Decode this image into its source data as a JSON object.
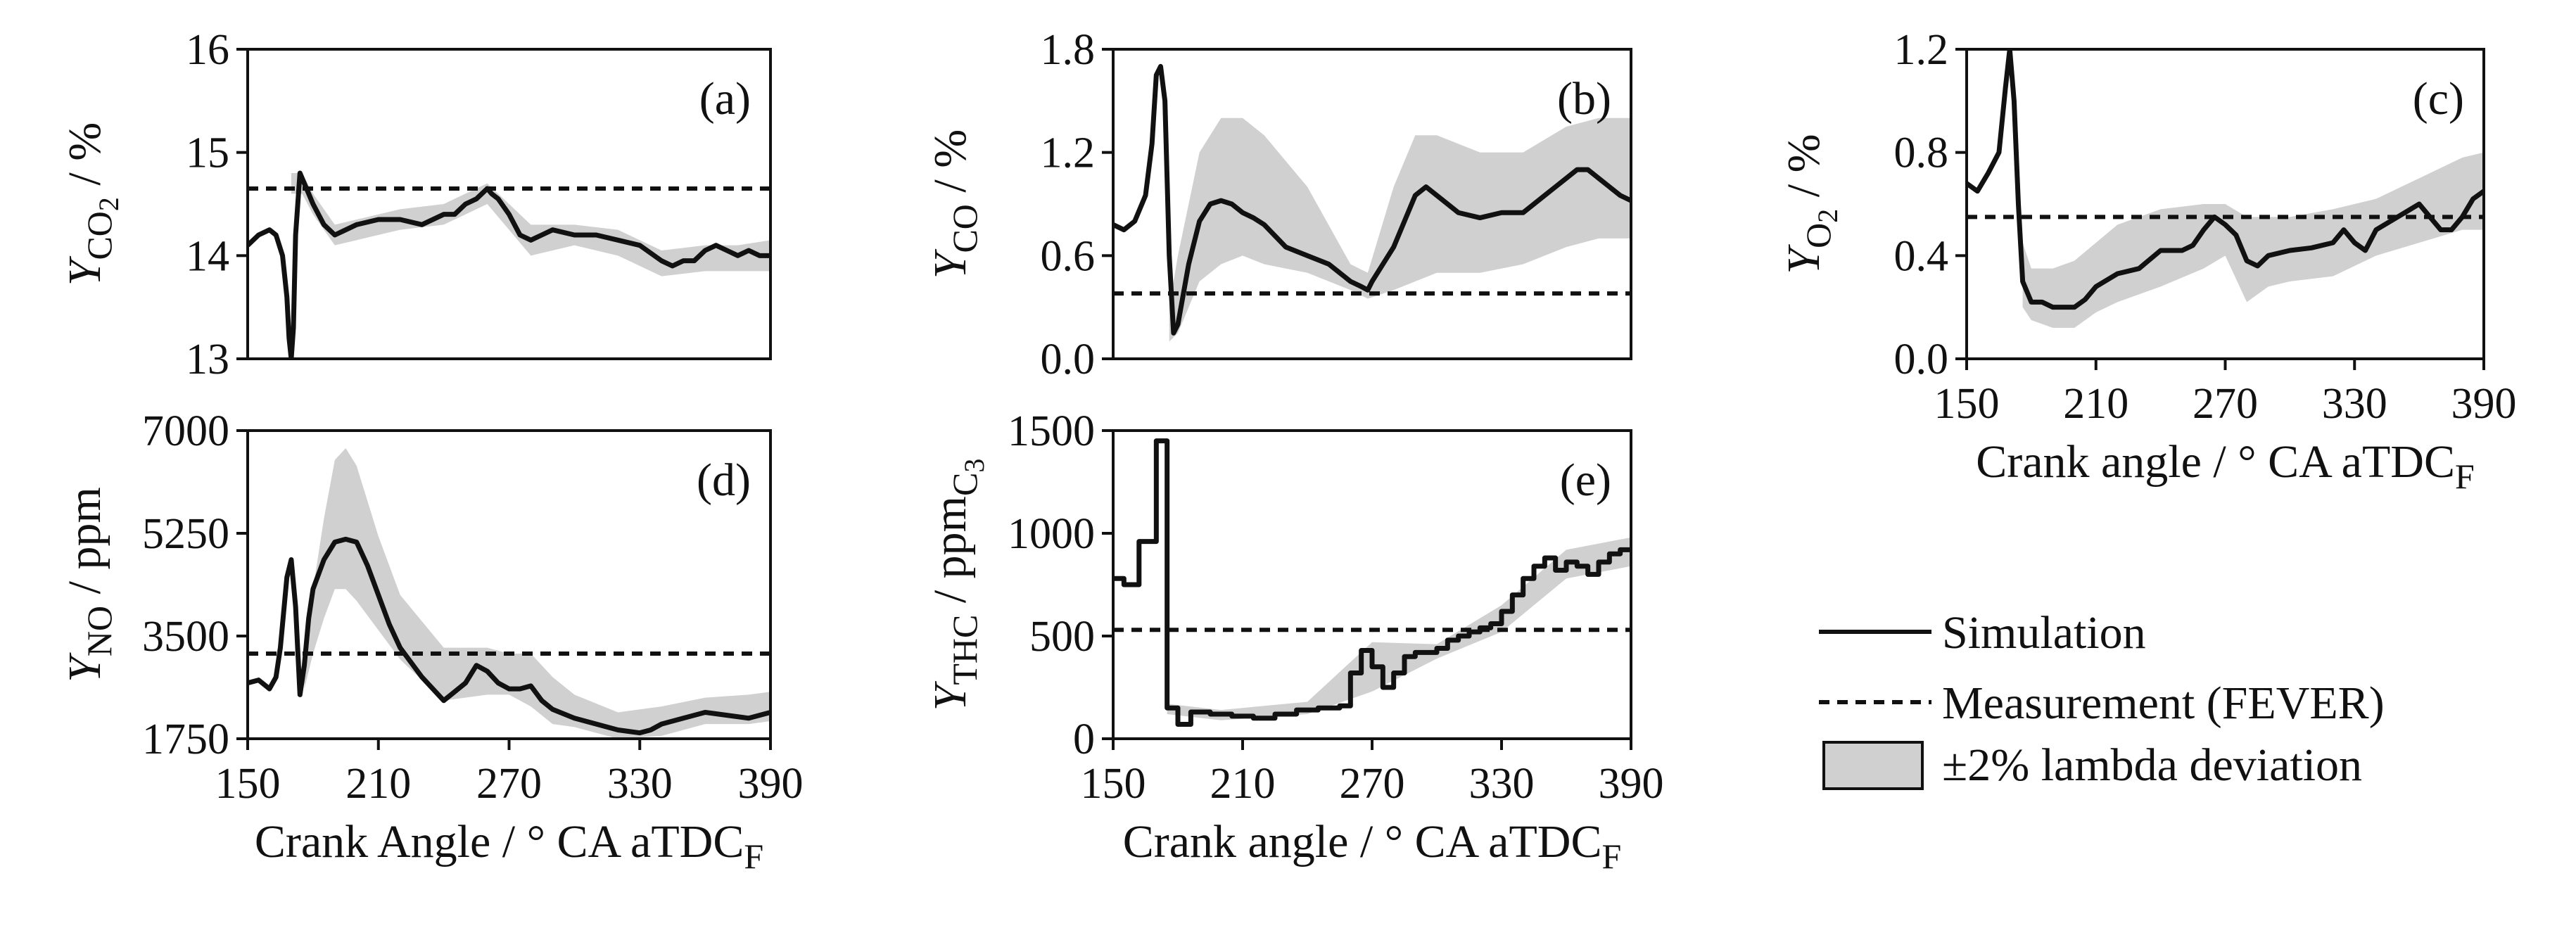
{
  "colors": {
    "line": "#111111",
    "band": "#d0d0d0",
    "axis": "#111111",
    "background": "#ffffff"
  },
  "legend": {
    "simulation": "Simulation",
    "measurement": "Measurement (FEVER)",
    "band": "±2% lambda deviation"
  },
  "chart_data": [
    {
      "id": "a",
      "type": "line",
      "title": "(a)",
      "ylabel": {
        "main": "Y",
        "sub": "CO",
        "subsub": "2",
        "unit": " / %"
      },
      "xlabel": null,
      "xlim": [
        150,
        390
      ],
      "ylim": [
        13,
        16
      ],
      "xticks": [],
      "xticklabels": [],
      "yticks": [
        13,
        14,
        15,
        16
      ],
      "yticklabels": [
        "13",
        "14",
        "15",
        "16"
      ],
      "measurement": 14.65,
      "step": false,
      "series": {
        "name": "Simulation",
        "x": [
          150,
          155,
          160,
          163,
          166,
          168,
          169,
          170,
          171,
          172,
          174,
          176,
          180,
          185,
          190,
          195,
          200,
          210,
          220,
          230,
          240,
          245,
          250,
          255,
          260,
          262,
          265,
          270,
          275,
          280,
          285,
          290,
          300,
          310,
          320,
          330,
          340,
          345,
          350,
          355,
          360,
          365,
          370,
          375,
          380,
          385,
          390
        ],
        "y": [
          14.1,
          14.2,
          14.25,
          14.2,
          14.0,
          13.6,
          13.2,
          13.0,
          13.3,
          14.2,
          14.8,
          14.7,
          14.5,
          14.3,
          14.2,
          14.25,
          14.3,
          14.35,
          14.35,
          14.3,
          14.4,
          14.4,
          14.5,
          14.55,
          14.65,
          14.6,
          14.55,
          14.4,
          14.2,
          14.15,
          14.2,
          14.25,
          14.2,
          14.2,
          14.15,
          14.1,
          13.95,
          13.9,
          13.95,
          13.95,
          14.05,
          14.1,
          14.05,
          14.0,
          14.05,
          14.0,
          14.0
        ]
      },
      "band": {
        "name": "±2% lambda deviation",
        "x": [
          170,
          175,
          180,
          190,
          200,
          220,
          240,
          260,
          280,
          300,
          320,
          340,
          360,
          375,
          390
        ],
        "lower": [
          14.6,
          14.6,
          14.4,
          14.1,
          14.15,
          14.25,
          14.3,
          14.5,
          14.0,
          14.1,
          14.0,
          13.8,
          13.85,
          13.85,
          13.85
        ],
        "upper": [
          14.8,
          14.8,
          14.6,
          14.3,
          14.35,
          14.45,
          14.5,
          14.7,
          14.3,
          14.3,
          14.25,
          14.05,
          14.1,
          14.1,
          14.15
        ]
      }
    },
    {
      "id": "b",
      "type": "line",
      "title": "(b)",
      "ylabel": {
        "main": "Y",
        "sub": "CO",
        "subsub": "",
        "unit": " / %"
      },
      "xlabel": null,
      "xlim": [
        150,
        390
      ],
      "ylim": [
        0,
        1.8
      ],
      "xticks": [],
      "xticklabels": [],
      "yticks": [
        0,
        0.6,
        1.2,
        1.8
      ],
      "yticklabels": [
        "0.0",
        "0.6",
        "1.2",
        "1.8"
      ],
      "measurement": 0.38,
      "step": false,
      "series": {
        "name": "Simulation",
        "x": [
          150,
          155,
          160,
          165,
          168,
          170,
          172,
          174,
          176,
          178,
          180,
          185,
          190,
          195,
          200,
          205,
          210,
          215,
          220,
          230,
          240,
          250,
          260,
          265,
          268,
          270,
          275,
          280,
          285,
          290,
          295,
          300,
          305,
          310,
          320,
          330,
          340,
          345,
          350,
          355,
          360,
          365,
          370,
          375,
          380,
          385,
          390
        ],
        "y": [
          0.78,
          0.75,
          0.8,
          0.95,
          1.25,
          1.65,
          1.7,
          1.5,
          0.6,
          0.15,
          0.2,
          0.55,
          0.8,
          0.9,
          0.92,
          0.9,
          0.85,
          0.82,
          0.78,
          0.65,
          0.6,
          0.55,
          0.45,
          0.42,
          0.4,
          0.45,
          0.55,
          0.65,
          0.8,
          0.95,
          1.0,
          0.95,
          0.9,
          0.85,
          0.82,
          0.85,
          0.85,
          0.9,
          0.95,
          1.0,
          1.05,
          1.1,
          1.1,
          1.05,
          1.0,
          0.95,
          0.92
        ]
      },
      "band": {
        "name": "±2% lambda deviation",
        "x": [
          176,
          180,
          190,
          200,
          210,
          220,
          240,
          260,
          268,
          280,
          290,
          300,
          320,
          340,
          360,
          375,
          390
        ],
        "lower": [
          0.1,
          0.15,
          0.45,
          0.55,
          0.6,
          0.55,
          0.5,
          0.4,
          0.35,
          0.4,
          0.45,
          0.5,
          0.5,
          0.55,
          0.65,
          0.7,
          0.7
        ],
        "upper": [
          0.3,
          0.6,
          1.2,
          1.4,
          1.4,
          1.3,
          1.0,
          0.55,
          0.5,
          1.0,
          1.3,
          1.3,
          1.2,
          1.2,
          1.35,
          1.4,
          1.4
        ]
      }
    },
    {
      "id": "c",
      "type": "line",
      "title": "(c)",
      "ylabel": {
        "main": "Y",
        "sub": "O",
        "subsub": "2",
        "unit": " / %"
      },
      "xlabel": {
        "text": "Crank angle / ° CA aTDC",
        "sub": "F"
      },
      "xlim": [
        150,
        390
      ],
      "ylim": [
        0,
        1.2
      ],
      "xticks": [
        150,
        210,
        270,
        330,
        390
      ],
      "xticklabels": [
        "150",
        "210",
        "270",
        "330",
        "390"
      ],
      "yticks": [
        0,
        0.4,
        0.8,
        1.2
      ],
      "yticklabels": [
        "0.0",
        "0.4",
        "0.8",
        "1.2"
      ],
      "measurement": 0.55,
      "step": false,
      "series": {
        "name": "Simulation",
        "x": [
          150,
          155,
          160,
          165,
          168,
          170,
          172,
          174,
          176,
          180,
          185,
          190,
          195,
          200,
          205,
          210,
          220,
          230,
          240,
          250,
          255,
          260,
          265,
          270,
          275,
          280,
          285,
          290,
          300,
          310,
          320,
          325,
          330,
          335,
          340,
          350,
          360,
          365,
          370,
          375,
          380,
          385,
          390
        ],
        "y": [
          0.68,
          0.65,
          0.72,
          0.8,
          1.05,
          1.2,
          1.0,
          0.6,
          0.3,
          0.22,
          0.22,
          0.2,
          0.2,
          0.2,
          0.23,
          0.28,
          0.33,
          0.35,
          0.42,
          0.42,
          0.44,
          0.5,
          0.55,
          0.52,
          0.48,
          0.38,
          0.36,
          0.4,
          0.42,
          0.43,
          0.45,
          0.5,
          0.45,
          0.42,
          0.5,
          0.55,
          0.6,
          0.55,
          0.5,
          0.5,
          0.55,
          0.62,
          0.65
        ]
      },
      "band": {
        "name": "±2% lambda deviation",
        "x": [
          176,
          180,
          190,
          200,
          210,
          220,
          240,
          260,
          270,
          280,
          290,
          300,
          320,
          340,
          360,
          380,
          390
        ],
        "lower": [
          0.2,
          0.15,
          0.12,
          0.12,
          0.18,
          0.22,
          0.28,
          0.35,
          0.4,
          0.22,
          0.28,
          0.3,
          0.32,
          0.4,
          0.45,
          0.5,
          0.5
        ],
        "upper": [
          0.45,
          0.35,
          0.35,
          0.38,
          0.45,
          0.52,
          0.58,
          0.6,
          0.6,
          0.55,
          0.55,
          0.55,
          0.58,
          0.62,
          0.7,
          0.78,
          0.8
        ]
      }
    },
    {
      "id": "d",
      "type": "line",
      "title": "(d)",
      "ylabel": {
        "main": "Y",
        "sub": "NO",
        "subsub": "",
        "unit": " / ppm"
      },
      "xlabel": {
        "text": "Crank Angle / ° CA aTDC",
        "sub": "F"
      },
      "xlim": [
        150,
        390
      ],
      "ylim": [
        1750,
        7000
      ],
      "xticks": [
        150,
        210,
        270,
        330,
        390
      ],
      "xticklabels": [
        "150",
        "210",
        "270",
        "330",
        "390"
      ],
      "yticks": [
        1750,
        3500,
        5250,
        7000
      ],
      "yticklabels": [
        "1750",
        "3500",
        "5250",
        "7000"
      ],
      "measurement": 3200,
      "step": false,
      "series": {
        "name": "Simulation",
        "x": [
          150,
          155,
          160,
          163,
          165,
          168,
          170,
          172,
          174,
          176,
          178,
          180,
          185,
          190,
          195,
          200,
          205,
          210,
          215,
          220,
          230,
          240,
          250,
          255,
          260,
          265,
          270,
          275,
          280,
          285,
          290,
          300,
          310,
          320,
          330,
          335,
          340,
          350,
          360,
          370,
          380,
          385,
          390
        ],
        "y": [
          2700,
          2750,
          2600,
          2800,
          3300,
          4500,
          4800,
          4000,
          2500,
          3000,
          3800,
          4300,
          4800,
          5100,
          5150,
          5100,
          4700,
          4200,
          3700,
          3300,
          2800,
          2400,
          2700,
          3000,
          2900,
          2700,
          2600,
          2600,
          2650,
          2400,
          2250,
          2100,
          2000,
          1900,
          1850,
          1900,
          2000,
          2100,
          2200,
          2150,
          2100,
          2150,
          2200
        ]
      },
      "band": {
        "name": "±2% lambda deviation",
        "x": [
          176,
          180,
          185,
          190,
          195,
          200,
          210,
          220,
          240,
          260,
          270,
          280,
          290,
          300,
          320,
          340,
          360,
          380,
          390
        ],
        "lower": [
          2600,
          3200,
          3800,
          4300,
          4300,
          4100,
          3600,
          3100,
          2400,
          2500,
          2500,
          2300,
          2000,
          1950,
          1750,
          1800,
          2000,
          2000,
          2050
        ],
        "upper": [
          3200,
          4300,
          5500,
          6500,
          6700,
          6400,
          5200,
          4200,
          3300,
          3300,
          3200,
          3200,
          2800,
          2500,
          2200,
          2300,
          2450,
          2500,
          2550
        ]
      }
    },
    {
      "id": "e",
      "type": "line",
      "title": "(e)",
      "ylabel": {
        "main": "Y",
        "sub": "THC",
        "subsub": "",
        "unit": " / ppm",
        "unit_sub": "C",
        "unit_subsub": "3"
      },
      "xlabel": {
        "text": "Crank angle / ° CA aTDC",
        "sub": "F"
      },
      "xlim": [
        150,
        390
      ],
      "ylim": [
        0,
        1500
      ],
      "xticks": [
        150,
        210,
        270,
        330,
        390
      ],
      "xticklabels": [
        "150",
        "210",
        "270",
        "330",
        "390"
      ],
      "yticks": [
        0,
        500,
        1000,
        1500
      ],
      "yticklabels": [
        "0",
        "500",
        "1000",
        "1500"
      ],
      "measurement": 530,
      "step": true,
      "series": {
        "name": "Simulation",
        "x": [
          150,
          155,
          162,
          170,
          175,
          180,
          186,
          195,
          205,
          215,
          225,
          235,
          245,
          255,
          260,
          265,
          270,
          275,
          280,
          285,
          290,
          295,
          300,
          305,
          310,
          315,
          320,
          325,
          330,
          335,
          340,
          345,
          350,
          355,
          360,
          365,
          370,
          375,
          380,
          385,
          390
        ],
        "y": [
          780,
          750,
          960,
          1450,
          150,
          70,
          130,
          120,
          110,
          100,
          120,
          140,
          150,
          160,
          320,
          430,
          350,
          250,
          320,
          400,
          420,
          420,
          440,
          480,
          500,
          520,
          540,
          560,
          620,
          700,
          780,
          840,
          880,
          820,
          860,
          840,
          800,
          860,
          900,
          920,
          920
        ]
      },
      "band": {
        "name": "±2% lambda deviation",
        "x": [
          175,
          200,
          240,
          270,
          300,
          330,
          360,
          390
        ],
        "lower": [
          120,
          90,
          120,
          230,
          390,
          520,
          780,
          840
        ],
        "upper": [
          170,
          140,
          180,
          470,
          460,
          650,
          920,
          980
        ]
      }
    }
  ]
}
